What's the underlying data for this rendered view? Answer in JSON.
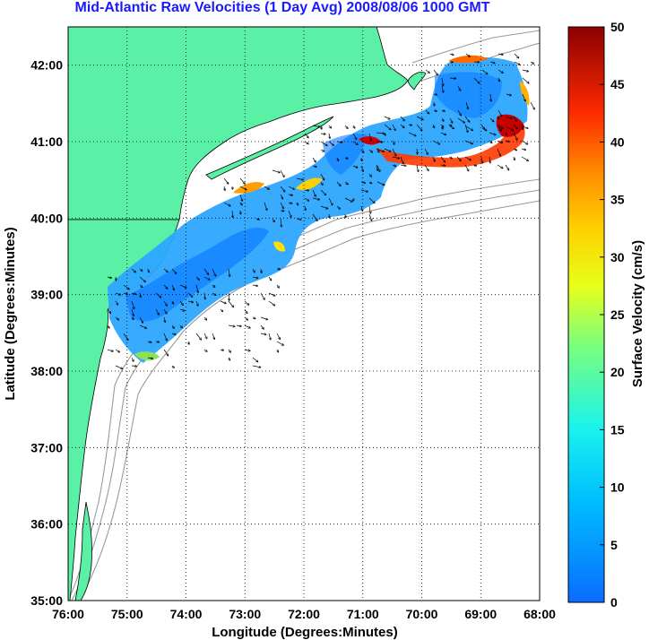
{
  "title": "Mid-Atlantic Raw Velocities (1 Day Avg) 2008/08/06 1000 GMT",
  "map": {
    "xlabel": "Longitude (Degrees:Minutes)",
    "ylabel": "Latitude (Degrees:Minutes)",
    "x_ticks": [
      "76:00",
      "75:00",
      "74:00",
      "73:00",
      "72:00",
      "71:00",
      "70:00",
      "69:00",
      "68:00"
    ],
    "y_ticks": [
      "35:00",
      "36:00",
      "37:00",
      "38:00",
      "39:00",
      "40:00",
      "41:00",
      "42:00"
    ],
    "lon_range": [
      -76,
      -68
    ],
    "lat_range": [
      35,
      42.5
    ],
    "land_color": "#5af0a6",
    "grid": "dotted"
  },
  "colorbar": {
    "label": "Surface Velocity (cm/s)",
    "ticks": [
      "0",
      "5",
      "10",
      "15",
      "20",
      "25",
      "30",
      "35",
      "40",
      "45",
      "50"
    ],
    "range": [
      0,
      50
    ],
    "colormap": "jet"
  }
}
